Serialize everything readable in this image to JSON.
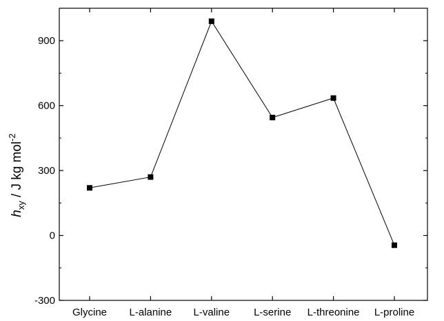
{
  "chart_data": {
    "type": "line",
    "categories": [
      "Glycine",
      "L-alanine",
      "L-valine",
      "L-serine",
      "L-threonine",
      "L-proline"
    ],
    "series": [
      {
        "values": [
          220,
          270,
          990,
          545,
          635,
          -45
        ]
      }
    ],
    "ylabel": {
      "symbol": "h",
      "subscript": "xy",
      "units": " / J kg mol",
      "superscript": "-2"
    },
    "ylim": [
      -300,
      1050
    ],
    "yticks": [
      -300,
      0,
      300,
      600,
      900
    ],
    "ytick_labels": [
      "-300",
      "0",
      "300",
      "600",
      "900"
    ],
    "grid": false,
    "marker": "square",
    "line_color": "#000000",
    "marker_color": "#000000"
  }
}
